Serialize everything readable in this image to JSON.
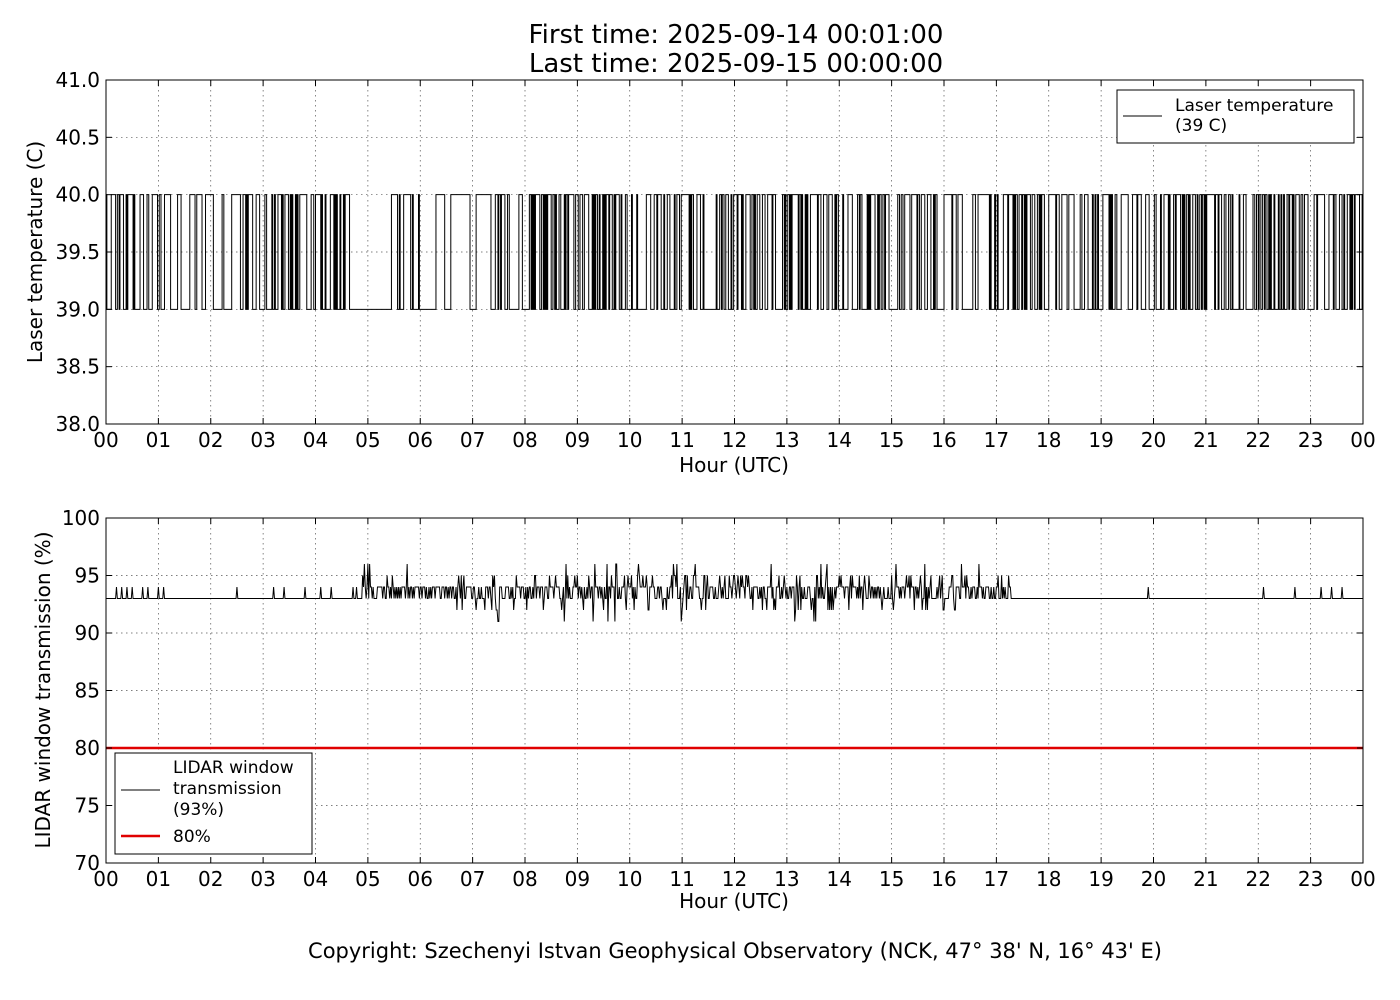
{
  "header": {
    "title_line1": "First time: 2025-09-14 00:01:00",
    "title_line2": "Last time: 2025-09-15 00:00:00"
  },
  "footer": {
    "copyright": "Copyright: Szechenyi Istvan Geophysical Observatory (NCK, 47° 38' N, 16° 43' E)"
  },
  "chart_data": [
    {
      "type": "line",
      "xlabel": "Hour (UTC)",
      "ylabel": "Laser temperature (C)",
      "xlim": [
        0,
        24
      ],
      "ylim": [
        38.0,
        41.0
      ],
      "xticks": [
        "00",
        "01",
        "02",
        "03",
        "04",
        "05",
        "06",
        "07",
        "08",
        "09",
        "10",
        "11",
        "12",
        "13",
        "14",
        "15",
        "16",
        "17",
        "18",
        "19",
        "20",
        "21",
        "22",
        "23",
        "00"
      ],
      "yticks": [
        "38.0",
        "38.5",
        "39.0",
        "39.5",
        "40.0",
        "40.5",
        "41.0"
      ],
      "grid": true,
      "legend_position": "top-right",
      "series": [
        {
          "name": "Laser temperature\n(39 C)",
          "color": "#000000",
          "levels": [
            39.0,
            40.0
          ],
          "toggle_density_per_hour": [
            14,
            9,
            9,
            17,
            14,
            9,
            2,
            9,
            17,
            19,
            14,
            12,
            12,
            14,
            11,
            15,
            12,
            16,
            12,
            7,
            18,
            12,
            17,
            15
          ],
          "note_quiet_period_hours": [
            4.7,
            5.3
          ]
        }
      ]
    },
    {
      "type": "line",
      "xlabel": "Hour (UTC)",
      "ylabel": "LIDAR window transmission (%)",
      "xlim": [
        0,
        24
      ],
      "ylim": [
        70,
        100
      ],
      "xticks": [
        "00",
        "01",
        "02",
        "03",
        "04",
        "05",
        "06",
        "07",
        "08",
        "09",
        "10",
        "11",
        "12",
        "13",
        "14",
        "15",
        "16",
        "17",
        "18",
        "19",
        "20",
        "21",
        "22",
        "23",
        "00"
      ],
      "yticks": [
        "70",
        "75",
        "80",
        "85",
        "90",
        "95",
        "100"
      ],
      "grid": true,
      "legend_position": "bottom-left",
      "series": [
        {
          "name": "LIDAR window\ntransmission\n(93%)",
          "color": "#000000",
          "baseline": 93,
          "active_window_hours": [
            4.7,
            17.3
          ],
          "active_range": [
            90,
            96
          ],
          "isolated_spikes_hours": [
            0.2,
            0.3,
            0.4,
            0.5,
            0.7,
            0.8,
            1.0,
            1.1,
            2.5,
            3.2,
            3.4,
            3.8,
            4.1,
            4.3,
            19.9,
            22.1,
            22.7,
            23.2,
            23.4,
            23.6
          ]
        },
        {
          "name": "80%",
          "color": "#e00000",
          "values_constant": 80
        }
      ]
    }
  ]
}
